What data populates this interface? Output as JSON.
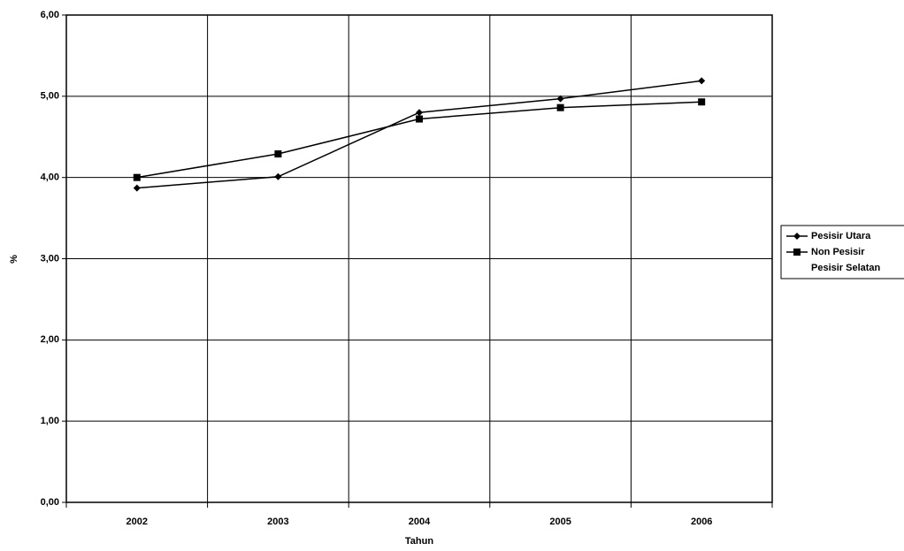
{
  "chart_data": {
    "type": "line",
    "x_label": "Tahun",
    "y_label": "%",
    "categories": [
      "2002",
      "2003",
      "2004",
      "2005",
      "2006"
    ],
    "series": [
      {
        "name": "Pesisir Utara",
        "color": "#000000",
        "marker": "diamond",
        "values": [
          3.87,
          4.01,
          4.8,
          4.97,
          5.19
        ]
      },
      {
        "name": "Non Pesisir",
        "color": "#000000",
        "marker": "square",
        "values": [
          4.0,
          4.29,
          4.72,
          4.86,
          4.93
        ]
      },
      {
        "name": "Pesisir Selatan",
        "color": "#000000",
        "marker": "none",
        "values": [
          null,
          null,
          null,
          null,
          null
        ]
      }
    ],
    "ylim": [
      0,
      6
    ],
    "yticks": [
      {
        "value": 0,
        "label": "0,00"
      },
      {
        "value": 1,
        "label": "1,00"
      },
      {
        "value": 2,
        "label": "2,00"
      },
      {
        "value": 3,
        "label": "3,00"
      },
      {
        "value": 4,
        "label": "4,00"
      },
      {
        "value": 5,
        "label": "5,00"
      },
      {
        "value": 6,
        "label": "6,00"
      }
    ],
    "grid": true,
    "legend": "right"
  }
}
